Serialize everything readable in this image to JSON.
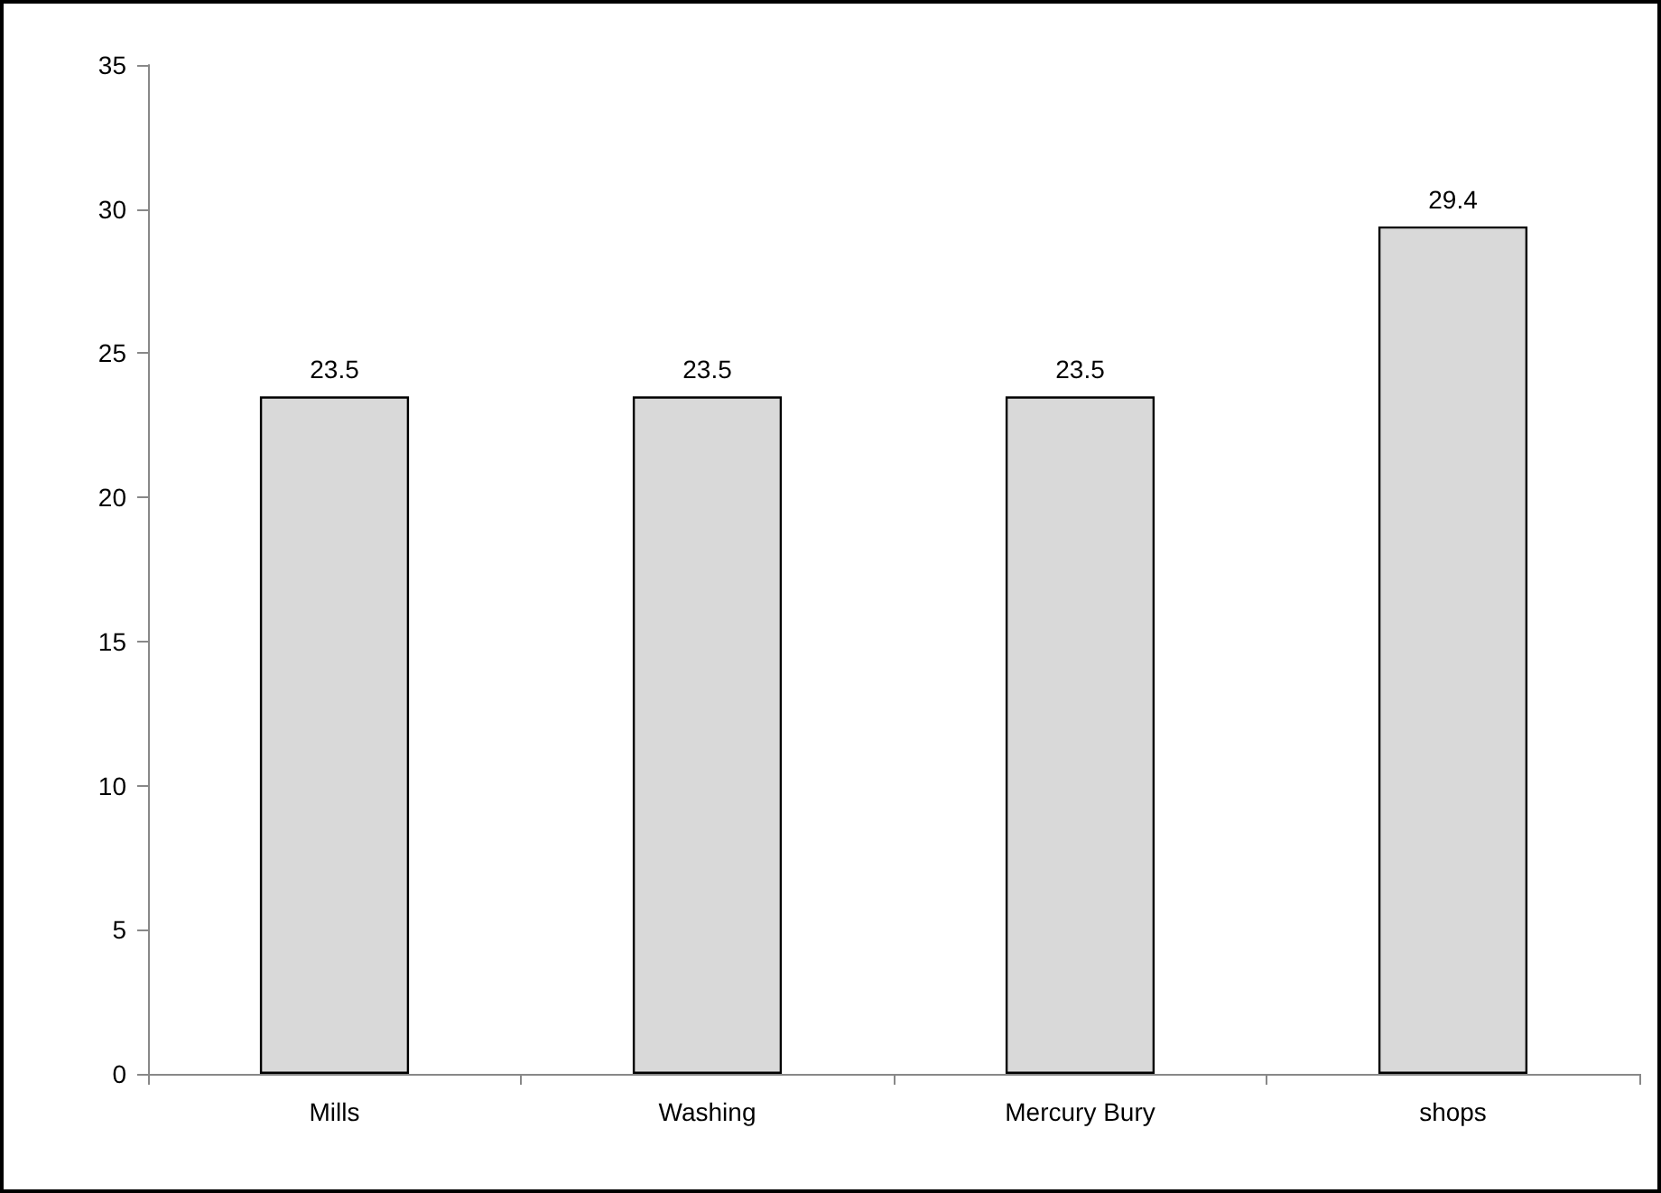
{
  "chart_data": {
    "type": "bar",
    "categories": [
      "Mills",
      "Washing",
      "Mercury Bury",
      "shops"
    ],
    "values": [
      23.5,
      23.5,
      23.5,
      29.4
    ],
    "color": "#d9d9d9",
    "ylim": [
      0,
      35
    ],
    "yticks": [
      0,
      5,
      10,
      15,
      20,
      25,
      30,
      35
    ],
    "grid": false,
    "data_labels": true
  }
}
